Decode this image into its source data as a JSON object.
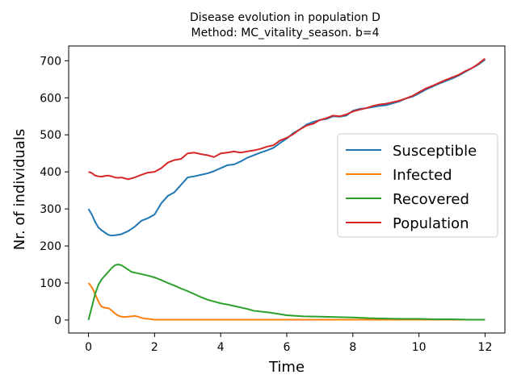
{
  "chart_data": {
    "type": "line",
    "title_line1": "Disease evolution in population D",
    "title_line2": "Method: MC_vitality_season. b=4",
    "xlabel": "Time",
    "ylabel": "Nr. of individuals",
    "xlim": [
      -0.6,
      12.6
    ],
    "ylim": [
      -35,
      740
    ],
    "xticks": [
      0,
      2,
      4,
      6,
      8,
      10,
      12
    ],
    "yticks": [
      0,
      100,
      200,
      300,
      400,
      500,
      600,
      700
    ],
    "grid": false,
    "legend_position": "center-right",
    "series": [
      {
        "name": "Susceptible",
        "color": "#1f77b4",
        "x": [
          0,
          0.1,
          0.2,
          0.3,
          0.4,
          0.5,
          0.6,
          0.7,
          0.8,
          0.9,
          1.0,
          1.2,
          1.4,
          1.6,
          1.8,
          2.0,
          2.2,
          2.4,
          2.6,
          2.8,
          3.0,
          3.2,
          3.4,
          3.6,
          3.8,
          4.0,
          4.2,
          4.4,
          4.6,
          4.8,
          5.0,
          5.2,
          5.4,
          5.6,
          5.8,
          6.0,
          6.2,
          6.4,
          6.6,
          6.8,
          7.0,
          7.2,
          7.4,
          7.6,
          7.8,
          8.0,
          8.2,
          8.4,
          8.6,
          8.8,
          9.0,
          9.2,
          9.4,
          9.6,
          9.8,
          10.0,
          10.2,
          10.4,
          10.6,
          10.8,
          11.0,
          11.2,
          11.4,
          11.6,
          11.8,
          12.0
        ],
        "y": [
          300,
          285,
          265,
          250,
          242,
          236,
          230,
          228,
          229,
          230,
          232,
          240,
          252,
          268,
          275,
          285,
          315,
          335,
          345,
          365,
          385,
          388,
          392,
          396,
          402,
          410,
          418,
          420,
          428,
          438,
          445,
          452,
          458,
          465,
          478,
          490,
          505,
          515,
          528,
          535,
          540,
          543,
          550,
          549,
          552,
          565,
          570,
          572,
          575,
          578,
          580,
          585,
          590,
          598,
          603,
          612,
          622,
          630,
          638,
          645,
          652,
          660,
          670,
          680,
          690,
          703
        ]
      },
      {
        "name": "Infected",
        "color": "#ff7f0e",
        "x": [
          0,
          0.05,
          0.1,
          0.15,
          0.2,
          0.25,
          0.3,
          0.35,
          0.4,
          0.5,
          0.6,
          0.7,
          0.8,
          0.9,
          1.0,
          1.1,
          1.2,
          1.3,
          1.4,
          1.5,
          1.6,
          1.7,
          1.8,
          1.9,
          2.0,
          2.5,
          3,
          4,
          5,
          6,
          7,
          8,
          9,
          10,
          11,
          12
        ],
        "y": [
          100,
          95,
          88,
          80,
          70,
          60,
          50,
          42,
          36,
          33,
          32,
          26,
          18,
          12,
          9,
          8,
          9,
          10,
          11,
          9,
          6,
          4,
          3,
          2,
          1,
          1,
          1,
          1,
          1,
          1,
          1,
          1,
          1,
          1,
          1,
          1
        ]
      },
      {
        "name": "Recovered",
        "color": "#2ca02c",
        "x": [
          0,
          0.1,
          0.2,
          0.3,
          0.4,
          0.5,
          0.6,
          0.7,
          0.8,
          0.9,
          1.0,
          1.1,
          1.2,
          1.3,
          1.4,
          1.5,
          1.6,
          1.8,
          2.0,
          2.2,
          2.4,
          2.6,
          2.8,
          3.0,
          3.2,
          3.4,
          3.6,
          3.8,
          4.0,
          4.2,
          4.4,
          4.6,
          4.8,
          5.0,
          5.5,
          6.0,
          6.5,
          7.0,
          7.5,
          8.0,
          8.5,
          9.0,
          9.5,
          10.0,
          10.5,
          11.0,
          11.5,
          12.0
        ],
        "y": [
          0,
          35,
          70,
          95,
          110,
          120,
          130,
          140,
          148,
          150,
          148,
          142,
          136,
          130,
          128,
          126,
          124,
          120,
          115,
          108,
          100,
          93,
          85,
          78,
          70,
          62,
          55,
          50,
          45,
          42,
          38,
          34,
          30,
          25,
          20,
          13,
          10,
          9,
          8,
          7,
          5,
          4,
          3,
          3,
          2,
          2,
          1,
          1
        ]
      },
      {
        "name": "Population",
        "color": "#d62728",
        "x": [
          0,
          0.1,
          0.2,
          0.3,
          0.4,
          0.5,
          0.6,
          0.7,
          0.8,
          0.9,
          1.0,
          1.2,
          1.4,
          1.6,
          1.8,
          2.0,
          2.2,
          2.4,
          2.6,
          2.8,
          3.0,
          3.2,
          3.4,
          3.6,
          3.8,
          4.0,
          4.2,
          4.4,
          4.6,
          4.8,
          5.0,
          5.2,
          5.4,
          5.6,
          5.8,
          6.0,
          6.2,
          6.4,
          6.6,
          6.8,
          7.0,
          7.2,
          7.4,
          7.6,
          7.8,
          8.0,
          8.2,
          8.4,
          8.6,
          8.8,
          9.0,
          9.2,
          9.4,
          9.6,
          9.8,
          10.0,
          10.2,
          10.4,
          10.6,
          10.8,
          11.0,
          11.2,
          11.4,
          11.6,
          11.8,
          12.0
        ],
        "y": [
          400,
          397,
          390,
          388,
          387,
          389,
          390,
          388,
          385,
          384,
          385,
          380,
          385,
          392,
          398,
          400,
          410,
          425,
          432,
          435,
          450,
          452,
          448,
          445,
          440,
          450,
          452,
          455,
          452,
          455,
          458,
          462,
          468,
          472,
          485,
          492,
          502,
          515,
          525,
          530,
          540,
          545,
          552,
          550,
          555,
          563,
          568,
          572,
          578,
          582,
          584,
          588,
          592,
          598,
          605,
          615,
          625,
          632,
          640,
          648,
          655,
          662,
          672,
          680,
          692,
          706
        ]
      }
    ]
  }
}
